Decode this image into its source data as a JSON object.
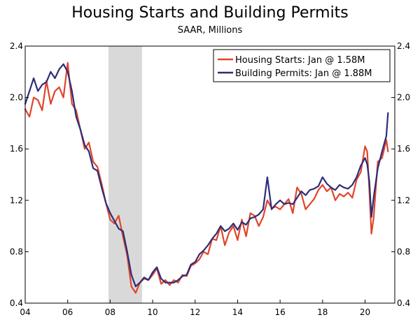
{
  "chart_data": {
    "type": "line",
    "title": "Housing Starts and Building Permits",
    "subtitle": "SAAR, Millions",
    "xlabel": "",
    "ylabel": "",
    "xlim": [
      2004.0,
      2021.4
    ],
    "ylim": [
      0.4,
      2.4
    ],
    "x_ticks": [
      2004,
      2006,
      2008,
      2010,
      2012,
      2014,
      2016,
      2018,
      2020
    ],
    "x_tick_labels": [
      "04",
      "06",
      "08",
      "10",
      "12",
      "14",
      "16",
      "18",
      "20"
    ],
    "y_ticks": [
      0.4,
      0.8,
      1.2,
      1.6,
      2.0,
      2.4
    ],
    "y_tick_labels": [
      "0.4",
      "0.8",
      "1.2",
      "1.6",
      "2.0",
      "2.4"
    ],
    "recession": [
      2007.92,
      2009.5
    ],
    "recession_color": "#d9d9d9",
    "legend_position": "top-right",
    "series": [
      {
        "name": "Housing Starts: Jan @ 1.58M",
        "color": "#e0452b",
        "points": [
          [
            2004.0,
            1.91
          ],
          [
            2004.2,
            1.85
          ],
          [
            2004.4,
            2.0
          ],
          [
            2004.6,
            1.98
          ],
          [
            2004.8,
            1.9
          ],
          [
            2005.0,
            2.13
          ],
          [
            2005.2,
            1.95
          ],
          [
            2005.4,
            2.05
          ],
          [
            2005.6,
            2.08
          ],
          [
            2005.8,
            2.0
          ],
          [
            2006.0,
            2.27
          ],
          [
            2006.2,
            1.95
          ],
          [
            2006.4,
            1.9
          ],
          [
            2006.6,
            1.75
          ],
          [
            2006.8,
            1.6
          ],
          [
            2007.0,
            1.65
          ],
          [
            2007.2,
            1.5
          ],
          [
            2007.4,
            1.46
          ],
          [
            2007.6,
            1.33
          ],
          [
            2007.8,
            1.18
          ],
          [
            2008.0,
            1.05
          ],
          [
            2008.2,
            1.02
          ],
          [
            2008.4,
            1.08
          ],
          [
            2008.6,
            0.92
          ],
          [
            2008.8,
            0.77
          ],
          [
            2009.0,
            0.53
          ],
          [
            2009.2,
            0.48
          ],
          [
            2009.4,
            0.56
          ],
          [
            2009.6,
            0.59
          ],
          [
            2009.8,
            0.58
          ],
          [
            2010.0,
            0.62
          ],
          [
            2010.2,
            0.67
          ],
          [
            2010.4,
            0.55
          ],
          [
            2010.6,
            0.58
          ],
          [
            2010.8,
            0.54
          ],
          [
            2011.0,
            0.58
          ],
          [
            2011.2,
            0.56
          ],
          [
            2011.4,
            0.62
          ],
          [
            2011.6,
            0.61
          ],
          [
            2011.8,
            0.69
          ],
          [
            2012.0,
            0.71
          ],
          [
            2012.2,
            0.74
          ],
          [
            2012.4,
            0.8
          ],
          [
            2012.6,
            0.78
          ],
          [
            2012.8,
            0.9
          ],
          [
            2013.0,
            0.89
          ],
          [
            2013.2,
            1.0
          ],
          [
            2013.4,
            0.85
          ],
          [
            2013.6,
            0.95
          ],
          [
            2013.8,
            1.0
          ],
          [
            2014.0,
            0.89
          ],
          [
            2014.2,
            1.05
          ],
          [
            2014.4,
            0.92
          ],
          [
            2014.6,
            1.1
          ],
          [
            2014.8,
            1.08
          ],
          [
            2015.0,
            1.0
          ],
          [
            2015.2,
            1.07
          ],
          [
            2015.4,
            1.2
          ],
          [
            2015.6,
            1.14
          ],
          [
            2015.8,
            1.15
          ],
          [
            2016.0,
            1.13
          ],
          [
            2016.2,
            1.17
          ],
          [
            2016.4,
            1.21
          ],
          [
            2016.6,
            1.1
          ],
          [
            2016.8,
            1.3
          ],
          [
            2017.0,
            1.25
          ],
          [
            2017.2,
            1.13
          ],
          [
            2017.4,
            1.17
          ],
          [
            2017.6,
            1.21
          ],
          [
            2017.8,
            1.28
          ],
          [
            2018.0,
            1.32
          ],
          [
            2018.2,
            1.27
          ],
          [
            2018.4,
            1.3
          ],
          [
            2018.6,
            1.2
          ],
          [
            2018.8,
            1.25
          ],
          [
            2019.0,
            1.23
          ],
          [
            2019.2,
            1.26
          ],
          [
            2019.4,
            1.22
          ],
          [
            2019.6,
            1.36
          ],
          [
            2019.8,
            1.42
          ],
          [
            2020.0,
            1.62
          ],
          [
            2020.1,
            1.58
          ],
          [
            2020.2,
            1.28
          ],
          [
            2020.3,
            0.94
          ],
          [
            2020.4,
            1.06
          ],
          [
            2020.6,
            1.5
          ],
          [
            2020.8,
            1.53
          ],
          [
            2021.0,
            1.67
          ],
          [
            2021.08,
            1.58
          ]
        ]
      },
      {
        "name": "Building Permits: Jan @ 1.88M",
        "color": "#2e2d78",
        "points": [
          [
            2004.0,
            1.95
          ],
          [
            2004.2,
            2.05
          ],
          [
            2004.4,
            2.15
          ],
          [
            2004.6,
            2.05
          ],
          [
            2004.8,
            2.1
          ],
          [
            2005.0,
            2.12
          ],
          [
            2005.2,
            2.2
          ],
          [
            2005.4,
            2.15
          ],
          [
            2005.6,
            2.22
          ],
          [
            2005.8,
            2.26
          ],
          [
            2006.0,
            2.2
          ],
          [
            2006.2,
            2.05
          ],
          [
            2006.4,
            1.85
          ],
          [
            2006.6,
            1.75
          ],
          [
            2006.8,
            1.63
          ],
          [
            2007.0,
            1.58
          ],
          [
            2007.2,
            1.45
          ],
          [
            2007.4,
            1.43
          ],
          [
            2007.6,
            1.3
          ],
          [
            2007.8,
            1.18
          ],
          [
            2008.0,
            1.1
          ],
          [
            2008.2,
            1.04
          ],
          [
            2008.4,
            0.98
          ],
          [
            2008.6,
            0.96
          ],
          [
            2008.8,
            0.8
          ],
          [
            2009.0,
            0.62
          ],
          [
            2009.2,
            0.53
          ],
          [
            2009.4,
            0.56
          ],
          [
            2009.6,
            0.6
          ],
          [
            2009.8,
            0.58
          ],
          [
            2010.0,
            0.64
          ],
          [
            2010.2,
            0.68
          ],
          [
            2010.4,
            0.59
          ],
          [
            2010.6,
            0.56
          ],
          [
            2010.8,
            0.56
          ],
          [
            2011.0,
            0.56
          ],
          [
            2011.2,
            0.58
          ],
          [
            2011.4,
            0.61
          ],
          [
            2011.6,
            0.62
          ],
          [
            2011.8,
            0.7
          ],
          [
            2012.0,
            0.72
          ],
          [
            2012.2,
            0.78
          ],
          [
            2012.4,
            0.81
          ],
          [
            2012.6,
            0.85
          ],
          [
            2012.8,
            0.9
          ],
          [
            2013.0,
            0.94
          ],
          [
            2013.2,
            1.0
          ],
          [
            2013.4,
            0.96
          ],
          [
            2013.6,
            0.98
          ],
          [
            2013.8,
            1.02
          ],
          [
            2014.0,
            0.97
          ],
          [
            2014.2,
            1.03
          ],
          [
            2014.4,
            1.01
          ],
          [
            2014.6,
            1.06
          ],
          [
            2014.8,
            1.07
          ],
          [
            2015.0,
            1.09
          ],
          [
            2015.2,
            1.13
          ],
          [
            2015.4,
            1.38
          ],
          [
            2015.6,
            1.13
          ],
          [
            2015.8,
            1.17
          ],
          [
            2016.0,
            1.2
          ],
          [
            2016.2,
            1.17
          ],
          [
            2016.4,
            1.18
          ],
          [
            2016.6,
            1.17
          ],
          [
            2016.8,
            1.22
          ],
          [
            2017.0,
            1.27
          ],
          [
            2017.2,
            1.24
          ],
          [
            2017.4,
            1.28
          ],
          [
            2017.6,
            1.29
          ],
          [
            2017.8,
            1.31
          ],
          [
            2018.0,
            1.38
          ],
          [
            2018.2,
            1.33
          ],
          [
            2018.4,
            1.3
          ],
          [
            2018.6,
            1.28
          ],
          [
            2018.8,
            1.32
          ],
          [
            2019.0,
            1.3
          ],
          [
            2019.2,
            1.29
          ],
          [
            2019.4,
            1.32
          ],
          [
            2019.6,
            1.38
          ],
          [
            2019.8,
            1.47
          ],
          [
            2020.0,
            1.53
          ],
          [
            2020.1,
            1.48
          ],
          [
            2020.2,
            1.35
          ],
          [
            2020.3,
            1.07
          ],
          [
            2020.4,
            1.22
          ],
          [
            2020.6,
            1.45
          ],
          [
            2020.8,
            1.58
          ],
          [
            2021.0,
            1.7
          ],
          [
            2021.08,
            1.88
          ]
        ]
      }
    ]
  }
}
